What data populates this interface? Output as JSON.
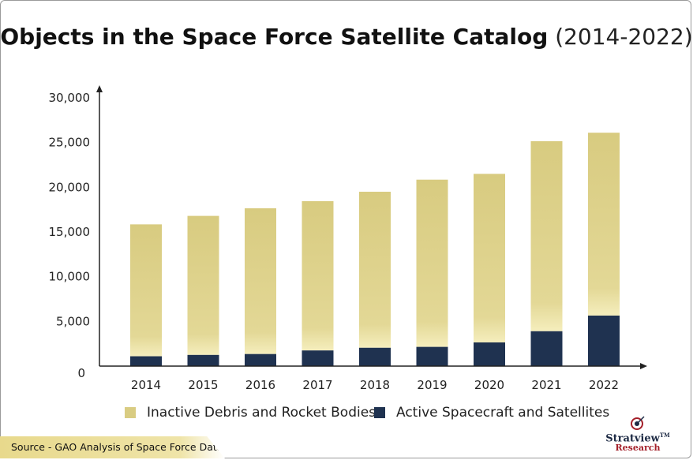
{
  "title_main": "Objects in the Space Force Satellite Catalog",
  "title_sub": "(2014-2022)",
  "source": "Source - GAO Analysis of Space Force Data",
  "logo": {
    "name": "Stratview",
    "tm": "TM",
    "name2": "Research"
  },
  "colors": {
    "debris": "#d9cc82",
    "active": "#1f3250",
    "axis": "#222222"
  },
  "chart_data": {
    "type": "bar",
    "stacked": true,
    "categories": [
      "2014",
      "2015",
      "2016",
      "2017",
      "2018",
      "2019",
      "2020",
      "2021",
      "2022"
    ],
    "series": [
      {
        "name": "Active Spacecraft and Satellites",
        "values": [
          1100,
          1250,
          1350,
          1750,
          2050,
          2150,
          2650,
          3900,
          5650
        ]
      },
      {
        "name": "Inactive Debris and Rocket Bodies",
        "values": [
          14750,
          15550,
          16300,
          16700,
          17450,
          18700,
          18850,
          21250,
          20450
        ]
      }
    ],
    "yticks": [
      "0",
      "5,000",
      "10,000",
      "15,000",
      "20,000",
      "25,000",
      "30,000"
    ],
    "ylim": [
      0,
      30000
    ],
    "grid": false,
    "legend_position": "bottom"
  }
}
